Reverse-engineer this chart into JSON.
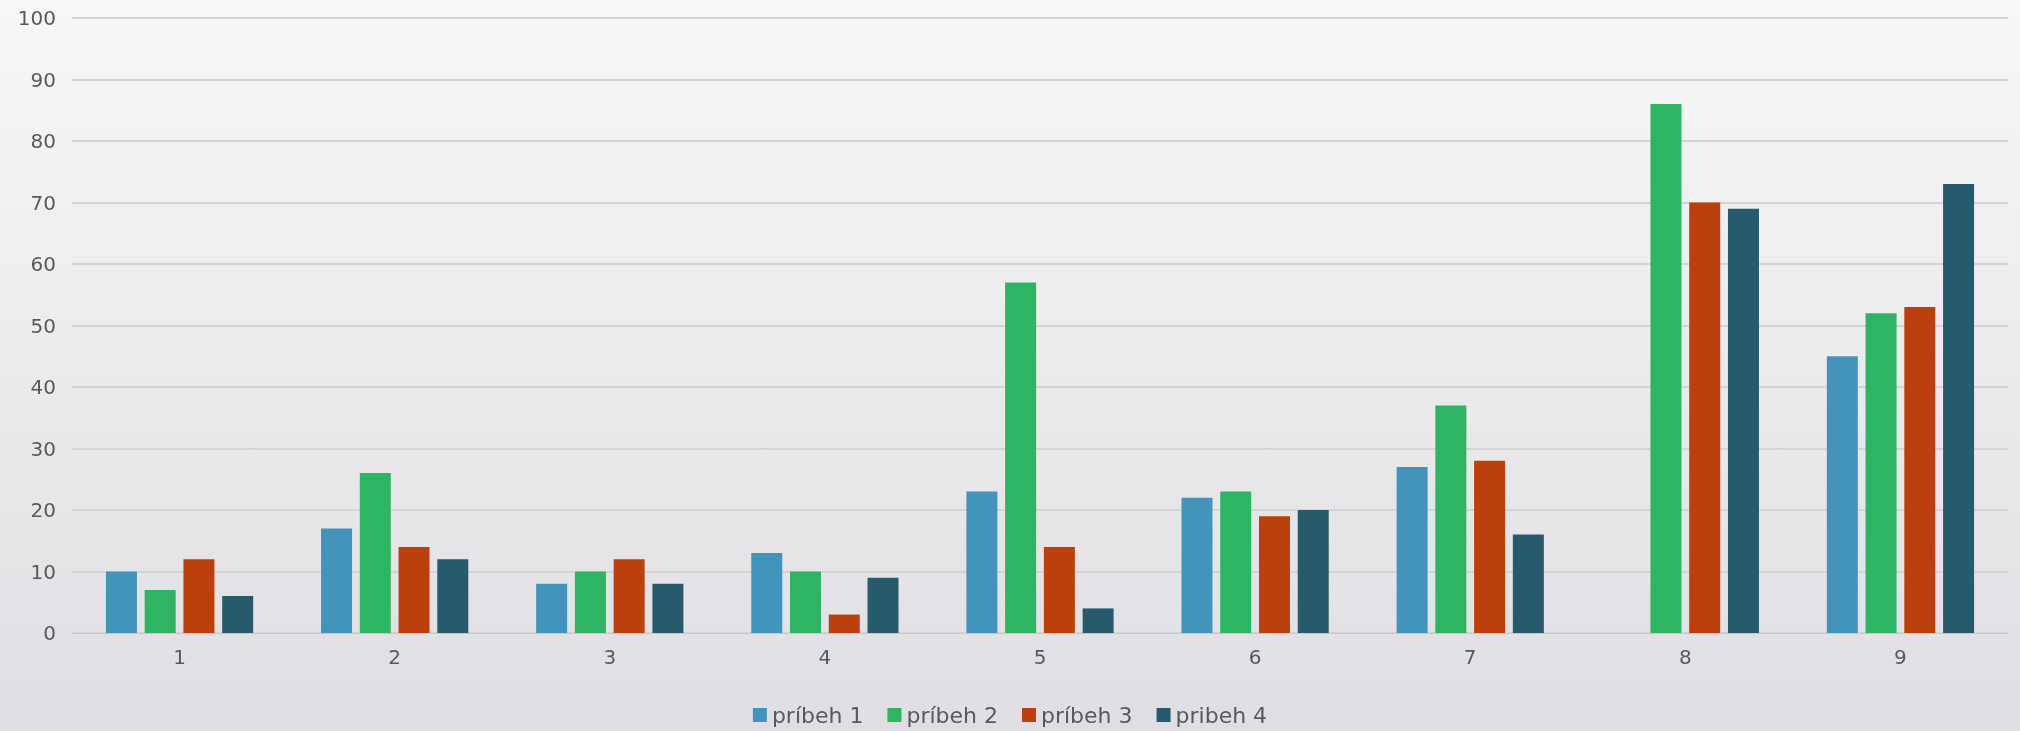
{
  "chart_data": {
    "type": "bar",
    "categories": [
      "1",
      "2",
      "3",
      "4",
      "5",
      "6",
      "7",
      "8",
      "9"
    ],
    "series": [
      {
        "name": "príbeh 1",
        "color": "#4394bb",
        "values": [
          10,
          17,
          8,
          13,
          23,
          22,
          27,
          null,
          45
        ]
      },
      {
        "name": "príbeh 2",
        "color": "#2db563",
        "values": [
          7,
          26,
          10,
          10,
          57,
          23,
          37,
          86,
          52
        ]
      },
      {
        "name": "príbeh 3",
        "color": "#bb400d",
        "values": [
          12,
          14,
          12,
          3,
          14,
          19,
          28,
          70,
          53
        ]
      },
      {
        "name": "pribeh 4",
        "color": "#275a6d",
        "values": [
          6,
          12,
          8,
          9,
          4,
          20,
          16,
          69,
          73
        ]
      }
    ],
    "ylim": [
      0,
      100
    ],
    "yticks": [
      0,
      10,
      20,
      30,
      40,
      50,
      60,
      70,
      80,
      90,
      100
    ],
    "grid": "y",
    "legend": "bottom"
  }
}
